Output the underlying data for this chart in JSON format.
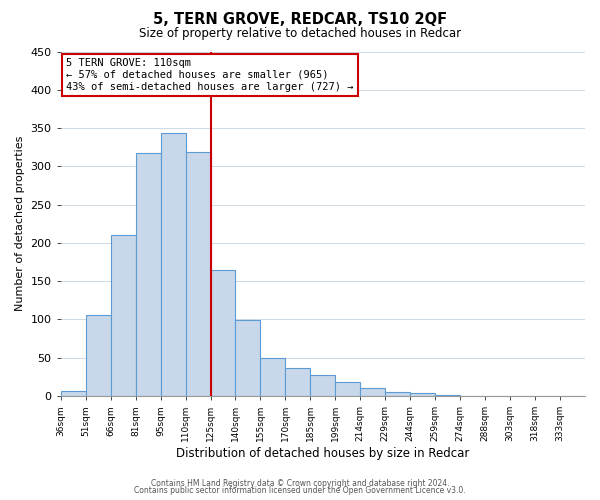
{
  "title": "5, TERN GROVE, REDCAR, TS10 2QF",
  "subtitle": "Size of property relative to detached houses in Redcar",
  "xlabel": "Distribution of detached houses by size in Redcar",
  "ylabel": "Number of detached properties",
  "bar_labels": [
    "36sqm",
    "51sqm",
    "66sqm",
    "81sqm",
    "95sqm",
    "110sqm",
    "125sqm",
    "140sqm",
    "155sqm",
    "170sqm",
    "185sqm",
    "199sqm",
    "214sqm",
    "229sqm",
    "244sqm",
    "259sqm",
    "274sqm",
    "288sqm",
    "303sqm",
    "318sqm",
    "333sqm"
  ],
  "bar_heights": [
    7,
    106,
    210,
    317,
    343,
    319,
    165,
    99,
    50,
    36,
    28,
    18,
    10,
    5,
    4,
    2,
    0,
    0,
    0,
    0,
    0
  ],
  "bar_color": "#c8d8ea",
  "bar_edge_color": "#5b9bd5",
  "vline_x_index": 6,
  "vline_color": "#cc0000",
  "ylim": [
    0,
    450
  ],
  "yticks": [
    0,
    50,
    100,
    150,
    200,
    250,
    300,
    350,
    400,
    450
  ],
  "annotation_title": "5 TERN GROVE: 110sqm",
  "annotation_line1": "← 57% of detached houses are smaller (965)",
  "annotation_line2": "43% of semi-detached houses are larger (727) →",
  "annotation_box_color": "#ffffff",
  "annotation_box_edge": "#cc0000",
  "footer1": "Contains HM Land Registry data © Crown copyright and database right 2024.",
  "footer2": "Contains public sector information licensed under the Open Government Licence v3.0.",
  "background_color": "#ffffff",
  "grid_color": "#c8d4e0"
}
